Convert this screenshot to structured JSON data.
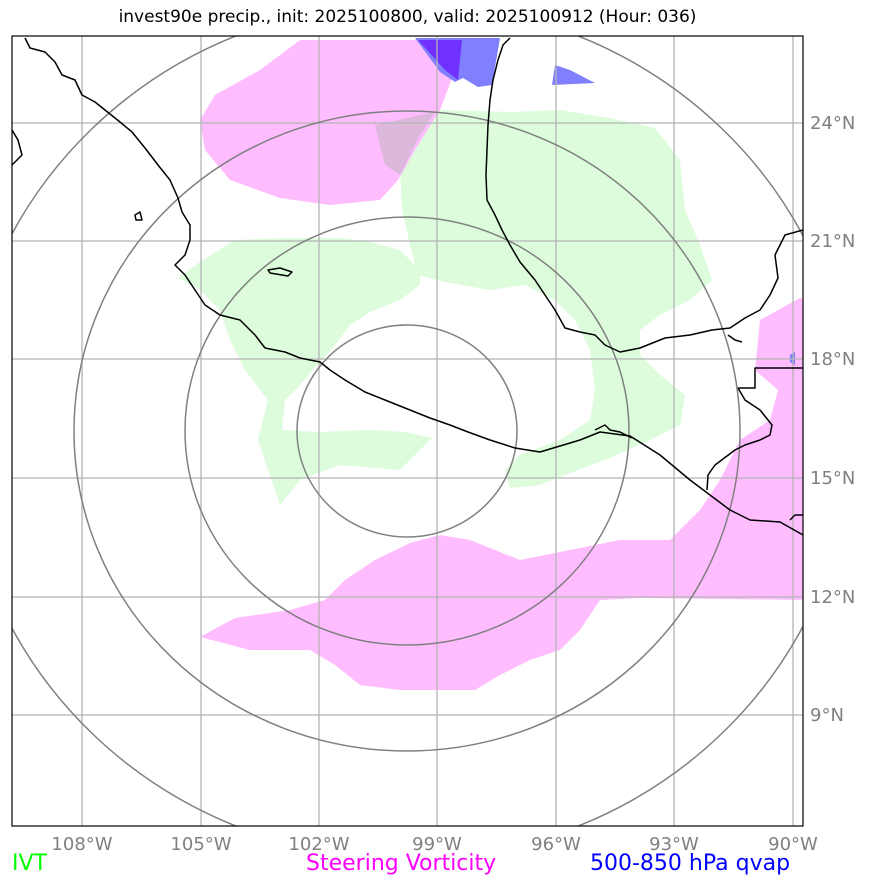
{
  "title": "invest90e precip., init: 2025100800, valid: 2025100912 (Hour: 036)",
  "axes": {
    "lon_labels": [
      "108°W",
      "105°W",
      "102°W",
      "99°W",
      "96°W",
      "93°W",
      "90°W"
    ],
    "lat_labels": [
      "24°N",
      "21°N",
      "18°N",
      "15°N",
      "12°N",
      "9°N"
    ]
  },
  "legend": {
    "ivt": {
      "label": "IVT",
      "color": "#00ff00"
    },
    "vorticity": {
      "label": "Steering Vorticity",
      "color": "#ff00ff"
    },
    "qvap": {
      "label": "500-850 hPa qvap",
      "color": "#0000ff"
    }
  },
  "colors": {
    "ivt_fill": "#dcfcdc",
    "vorticity_fill": "#ffbcff",
    "qvap_fill": "#8080ff",
    "qvap_dark": "#7030ff",
    "gridlines": "#b4b4b4",
    "range_rings": "#808080",
    "coastline": "#000000"
  }
}
